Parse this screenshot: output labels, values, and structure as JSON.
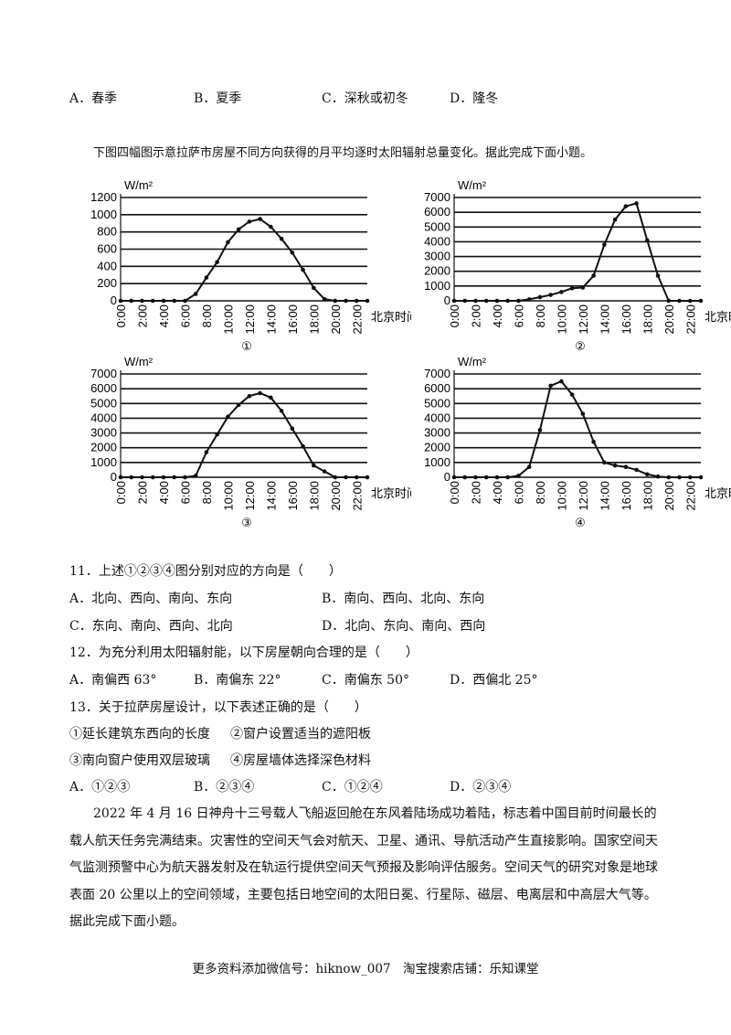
{
  "q10_options": [
    "A．春季",
    "B．夏季",
    "C．深秋或初冬",
    "D．隆冬"
  ],
  "intro": "下图四幅图示意拉萨市房屋不同方向获得的月平均逐时太阳辐射总量变化。据此完成下面小题。",
  "chart_data": [
    {
      "type": "line",
      "label": "①",
      "ylabel": "W/m²",
      "xlabel": "北京时间",
      "ylim": [
        0,
        1200
      ],
      "yticks": [
        "0",
        "200",
        "400",
        "600",
        "800",
        "1000",
        "1200"
      ],
      "xticks": [
        "0:00",
        "2:00",
        "4:00",
        "6:00",
        "8:00",
        "10:00",
        "12:00",
        "14:00",
        "16:00",
        "18:00",
        "20:00",
        "22:00"
      ],
      "x": [
        0,
        1,
        2,
        3,
        4,
        5,
        6,
        7,
        8,
        9,
        10,
        11,
        12,
        13,
        14,
        15,
        16,
        17,
        18,
        19,
        20,
        21,
        22,
        23
      ],
      "values": [
        0,
        0,
        0,
        0,
        0,
        0,
        0,
        80,
        270,
        450,
        680,
        830,
        920,
        950,
        860,
        720,
        560,
        360,
        150,
        20,
        0,
        0,
        0,
        0
      ]
    },
    {
      "type": "line",
      "label": "②",
      "ylabel": "W/m²",
      "xlabel": "北京时间",
      "ylim": [
        0,
        7000
      ],
      "yticks": [
        "0",
        "1000",
        "2000",
        "3000",
        "4000",
        "5000",
        "6000",
        "7000"
      ],
      "xticks": [
        "0:00",
        "2:00",
        "4:00",
        "6:00",
        "8:00",
        "10:00",
        "12:00",
        "14:00",
        "16:00",
        "18:00",
        "20:00",
        "22:00"
      ],
      "x": [
        0,
        1,
        2,
        3,
        4,
        5,
        6,
        7,
        8,
        9,
        10,
        11,
        12,
        13,
        14,
        15,
        16,
        17,
        18,
        19,
        20,
        21,
        22,
        23
      ],
      "values": [
        0,
        0,
        0,
        0,
        0,
        0,
        0,
        100,
        250,
        400,
        600,
        850,
        900,
        1700,
        3800,
        5500,
        6400,
        6600,
        4100,
        1700,
        0,
        0,
        0,
        0
      ]
    },
    {
      "type": "line",
      "label": "③",
      "ylabel": "W/m²",
      "xlabel": "北京时间",
      "ylim": [
        0,
        7000
      ],
      "yticks": [
        "0",
        "1000",
        "2000",
        "3000",
        "4000",
        "5000",
        "6000",
        "7000"
      ],
      "xticks": [
        "0:00",
        "2:00",
        "4:00",
        "6:00",
        "8:00",
        "10:00",
        "12:00",
        "14:00",
        "16:00",
        "18:00",
        "20:00",
        "22:00"
      ],
      "x": [
        0,
        1,
        2,
        3,
        4,
        5,
        6,
        7,
        8,
        9,
        10,
        11,
        12,
        13,
        14,
        15,
        16,
        17,
        18,
        19,
        20,
        21,
        22,
        23
      ],
      "values": [
        0,
        0,
        0,
        0,
        0,
        0,
        0,
        100,
        1700,
        2900,
        4100,
        4900,
        5500,
        5700,
        5400,
        4500,
        3300,
        2100,
        800,
        400,
        0,
        0,
        0,
        0
      ]
    },
    {
      "type": "line",
      "label": "④",
      "ylabel": "W/m²",
      "xlabel": "北京时间",
      "ylim": [
        0,
        7000
      ],
      "yticks": [
        "0",
        "1000",
        "2000",
        "3000",
        "4000",
        "5000",
        "6000",
        "7000"
      ],
      "xticks": [
        "0:00",
        "2:00",
        "4:00",
        "6:00",
        "8:00",
        "10:00",
        "12:00",
        "14:00",
        "16:00",
        "18:00",
        "20:00",
        "22:00"
      ],
      "x": [
        0,
        1,
        2,
        3,
        4,
        5,
        6,
        7,
        8,
        9,
        10,
        11,
        12,
        13,
        14,
        15,
        16,
        17,
        18,
        19,
        20,
        21,
        22,
        23
      ],
      "values": [
        0,
        0,
        0,
        0,
        0,
        0,
        100,
        700,
        3200,
        6200,
        6500,
        5600,
        4300,
        2400,
        1000,
        800,
        700,
        500,
        200,
        50,
        0,
        0,
        0,
        0
      ]
    }
  ],
  "q11": {
    "stem": "11．上述①②③④图分别对应的方向是（　　）",
    "options": [
      "A．北向、西向、南向、东向",
      "B．南向、西向、北向、东向",
      "C．东向、南向、西向、北向",
      "D．北向、东向、南向、西向"
    ]
  },
  "q12": {
    "stem": "12．为充分利用太阳辐射能，以下房屋朝向合理的是（　　）",
    "options": [
      "A．南偏西 63°",
      "B．南偏东 22°",
      "C．南偏东 50°",
      "D．西偏北 25°"
    ]
  },
  "q13": {
    "stem": "13．关于拉萨房屋设计，以下表述正确的是（　　）",
    "statements": [
      "①延长建筑东西向的长度",
      "②窗户设置适当的遮阳板",
      "③南向窗户使用双层玻璃",
      "④房屋墙体选择深色材料"
    ],
    "options": [
      "A．①②③",
      "B．②③④",
      "C．①②④",
      "D．②③④"
    ]
  },
  "passage": "2022 年 4 月 16 日神舟十三号载人飞船返回舱在东风着陆场成功着陆，标志着中国目前时间最长的载人航天任务完满结束。灾害性的空间天气会对航天、卫星、通讯、导航活动产生直接影响。国家空间天气监测预警中心为航天器发射及在轨运行提供空间天气预报及影响评估服务。空间天气的研究对象是地球表面 20 公里以上的空间领域，主要包括日地空间的太阳日冕、行星际、磁层、电离层和中高层大气等。据此完成下面小题。",
  "footer": "更多资料添加微信号：hiknow_007　淘宝搜索店铺：乐知课堂"
}
